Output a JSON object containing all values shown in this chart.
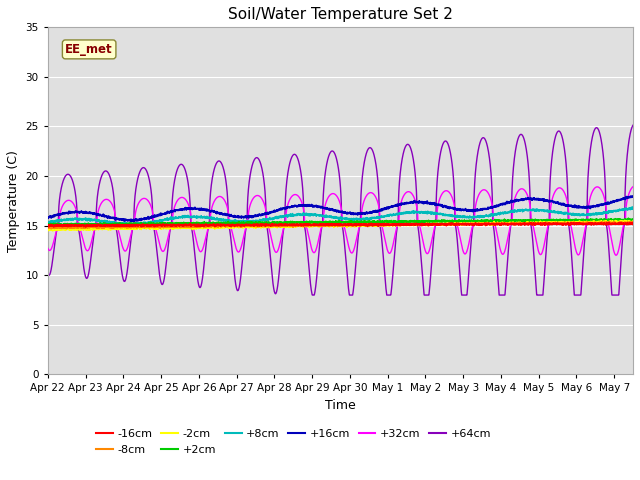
{
  "title": "Soil/Water Temperature Set 2",
  "xlabel": "Time",
  "ylabel": "Temperature (C)",
  "ylim": [
    0,
    35
  ],
  "yticks": [
    0,
    5,
    10,
    15,
    20,
    25,
    30,
    35
  ],
  "date_labels": [
    "Apr 22",
    "Apr 23",
    "Apr 24",
    "Apr 25",
    "Apr 26",
    "Apr 27",
    "Apr 28",
    "Apr 29",
    "Apr 30",
    "May 1",
    "May 2",
    "May 3",
    "May 4",
    "May 5",
    "May 6",
    "May 7"
  ],
  "annotation": "EE_met",
  "series": {
    "-16cm": {
      "color": "#ff0000",
      "lw": 1.2
    },
    "-8cm": {
      "color": "#ff8800",
      "lw": 1.2
    },
    "-2cm": {
      "color": "#ffff00",
      "lw": 1.2
    },
    "+2cm": {
      "color": "#00cc00",
      "lw": 1.2
    },
    "+8cm": {
      "color": "#00bbbb",
      "lw": 1.2
    },
    "+16cm": {
      "color": "#0000bb",
      "lw": 1.2
    },
    "+32cm": {
      "color": "#ff00ff",
      "lw": 1.0
    },
    "+64cm": {
      "color": "#8800bb",
      "lw": 1.0
    }
  },
  "plot_bg": "#e0e0e0",
  "fig_bg": "#ffffff",
  "grid_color": "#ffffff"
}
